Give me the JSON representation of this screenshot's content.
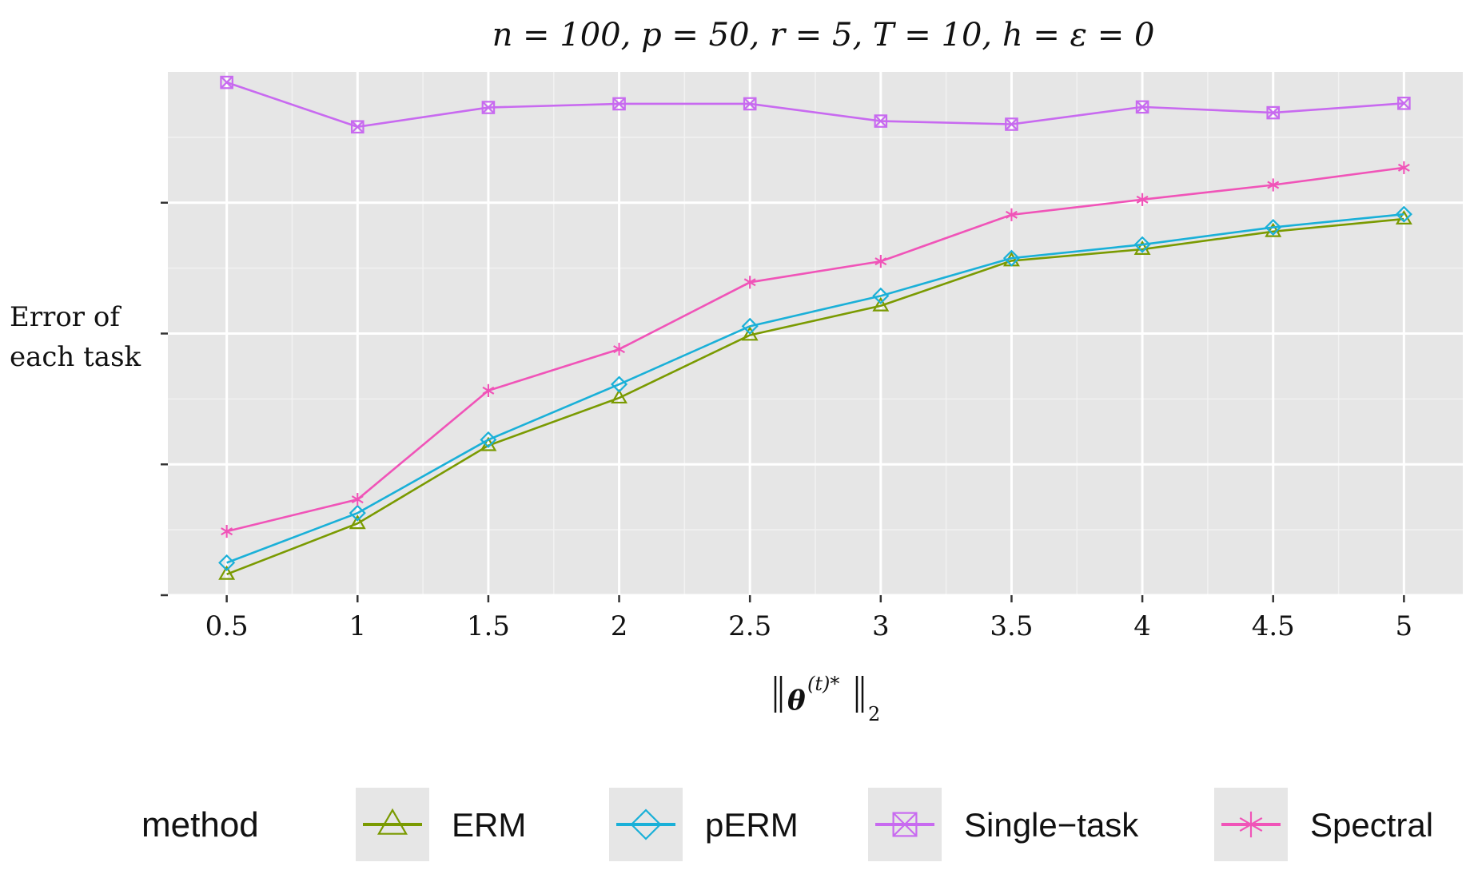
{
  "chart_data": {
    "type": "line",
    "title": "n = 100, p = 50, r = 5, T = 10, h = ε = 0",
    "xlabel": "‖θ(t)*‖2",
    "xlabel_main": "θ",
    "xlabel_sup": "(t)*",
    "xlabel_sub": "2",
    "ylabel_line1": "Error of",
    "ylabel_line2": "each task",
    "x": [
      0.5,
      1,
      1.5,
      2,
      2.5,
      3,
      3.5,
      4,
      4.5,
      5
    ],
    "x_tick_labels": [
      "0.5",
      "1",
      "1.5",
      "2",
      "2.5",
      "3",
      "3.5",
      "4",
      "4.5",
      "5"
    ],
    "xlim": [
      0.275,
      5.225
    ],
    "ylim": [
      0.0,
      1.0
    ],
    "y_major_ticks": [
      0.0,
      0.25,
      0.5,
      0.75
    ],
    "y_minor_ticks": [
      0.125,
      0.375,
      0.625,
      0.875
    ],
    "y_tick_labels_shown": false,
    "grid": true,
    "legend_position": "bottom",
    "legend_title": "method",
    "series": [
      {
        "name": "ERM",
        "color": "#7a9a01",
        "marker": "triangle",
        "values": [
          0.04,
          0.137,
          0.286,
          0.377,
          0.497,
          0.553,
          0.639,
          0.661,
          0.695,
          0.719
        ]
      },
      {
        "name": "pERM",
        "color": "#1ab0d8",
        "marker": "diamond",
        "values": [
          0.062,
          0.157,
          0.297,
          0.403,
          0.514,
          0.572,
          0.644,
          0.67,
          0.703,
          0.728
        ]
      },
      {
        "name": "Single−task",
        "color": "#c86af0",
        "marker": "boxed-x",
        "values": [
          0.98,
          0.895,
          0.932,
          0.939,
          0.939,
          0.906,
          0.9,
          0.933,
          0.922,
          0.94
        ]
      },
      {
        "name": "Spectral",
        "color": "#f054b8",
        "marker": "asterisk",
        "values": [
          0.122,
          0.183,
          0.391,
          0.47,
          0.598,
          0.638,
          0.727,
          0.756,
          0.784,
          0.817
        ]
      }
    ]
  }
}
